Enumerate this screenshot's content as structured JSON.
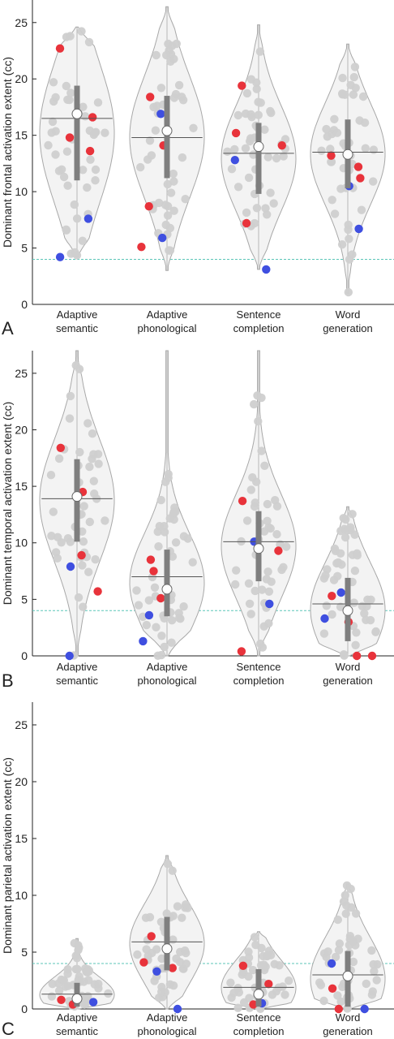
{
  "colors": {
    "violin_fill": "#f3f3f3",
    "violin_edge": "#a8a8a8",
    "gray_point": "#cfcfcf",
    "red_point": "#e8333b",
    "blue_point": "#3f4fe0",
    "iqr_bar": "#7f7f7f",
    "mean_line": "#555555",
    "median_marker": "#ffffff",
    "threshold_line": "#5cc6b8",
    "axis": "#222222"
  },
  "chart_data": [
    {
      "type": "violin",
      "panel": "A",
      "ylabel": "Dominant frontal activation extent (cc)",
      "ylim": [
        0,
        27
      ],
      "yticks": [
        0,
        5,
        10,
        15,
        20,
        25
      ],
      "threshold": 4,
      "categories": [
        "Adaptive\nsemantic",
        "Adaptive\nphonological",
        "Sentence\ncompletion",
        "Word\ngeneration"
      ],
      "groups": [
        {
          "min": 4.2,
          "max": 24.6,
          "q1": 11.0,
          "q3": 19.4,
          "median": 16.9,
          "mean": 16.5,
          "red": [
            22.7,
            16.6,
            14.8,
            13.6
          ],
          "blue": [
            7.6,
            4.2
          ]
        },
        {
          "min": 3.0,
          "max": 26.4,
          "q1": 11.2,
          "q3": 18.5,
          "median": 15.4,
          "mean": 14.8,
          "red": [
            18.4,
            14.1,
            8.7,
            5.1
          ],
          "blue": [
            16.9,
            5.9
          ]
        },
        {
          "min": 3.1,
          "max": 24.8,
          "q1": 9.8,
          "q3": 16.1,
          "median": 14.0,
          "mean": 13.4,
          "red": [
            19.4,
            15.2,
            14.1,
            7.2
          ],
          "blue": [
            12.8,
            3.1
          ]
        },
        {
          "min": 1.0,
          "max": 23.1,
          "q1": 10.3,
          "q3": 16.4,
          "median": 13.3,
          "mean": 13.5,
          "red": [
            13.2,
            12.2,
            11.2
          ],
          "blue": [
            10.5,
            6.7
          ]
        }
      ]
    },
    {
      "type": "violin",
      "panel": "B",
      "ylabel": "Dominant temporal activation extent (cc)",
      "ylim": [
        0,
        27
      ],
      "yticks": [
        0,
        5,
        10,
        15,
        20,
        25
      ],
      "threshold": 4,
      "categories": [
        "Adaptive\nsemantic",
        "Adaptive\nphonological",
        "Sentence\ncompletion",
        "Word\ngeneration"
      ],
      "groups": [
        {
          "min": 0.0,
          "max": 27.0,
          "q1": 10.1,
          "q3": 17.4,
          "median": 14.1,
          "mean": 13.9,
          "red": [
            18.4,
            14.5,
            8.9,
            5.7
          ],
          "blue": [
            7.9,
            0.0
          ]
        },
        {
          "min": 0.0,
          "max": 27.0,
          "q1": 3.5,
          "q3": 9.4,
          "median": 5.9,
          "mean": 7.0,
          "red": [
            8.5,
            7.5,
            5.1
          ],
          "blue": [
            3.6,
            1.3
          ]
        },
        {
          "min": 0.0,
          "max": 27.0,
          "q1": 6.6,
          "q3": 12.8,
          "median": 9.5,
          "mean": 10.1,
          "red": [
            13.7,
            9.3,
            0.4
          ],
          "blue": [
            10.1,
            4.6
          ]
        },
        {
          "min": 0.0,
          "max": 13.2,
          "q1": 1.3,
          "q3": 6.9,
          "median": 4.0,
          "mean": 4.6,
          "red": [
            5.3,
            3.0,
            0.0,
            0.0
          ],
          "blue": [
            5.6,
            3.3
          ]
        }
      ]
    },
    {
      "type": "violin",
      "panel": "C",
      "ylabel": "Dominant parietal activation extent (cc)",
      "ylim": [
        0,
        27
      ],
      "yticks": [
        0,
        5,
        10,
        15,
        20,
        25
      ],
      "threshold": 4,
      "categories": [
        "Adaptive\nsemantic",
        "Adaptive\nphonological",
        "Sentence\ncompletion",
        "Word\ngeneration"
      ],
      "groups": [
        {
          "min": 0.0,
          "max": 6.2,
          "q1": 0.2,
          "q3": 2.3,
          "median": 0.9,
          "mean": 1.3,
          "red": [
            0.8,
            0.4
          ],
          "blue": [
            0.6
          ]
        },
        {
          "min": 0.0,
          "max": 13.5,
          "q1": 3.4,
          "q3": 8.1,
          "median": 5.3,
          "mean": 5.9,
          "red": [
            6.4,
            4.1,
            3.6
          ],
          "blue": [
            3.3,
            0.0
          ]
        },
        {
          "min": 0.0,
          "max": 6.8,
          "q1": 0.2,
          "q3": 3.5,
          "median": 1.3,
          "mean": 1.9,
          "red": [
            3.8,
            2.2,
            0.4
          ],
          "blue": [
            0.5
          ]
        },
        {
          "min": 0.0,
          "max": 11.0,
          "q1": 0.2,
          "q3": 5.1,
          "median": 2.9,
          "mean": 3.0,
          "red": [
            1.8,
            0.0
          ],
          "blue": [
            4.0,
            0.0
          ]
        }
      ]
    }
  ]
}
